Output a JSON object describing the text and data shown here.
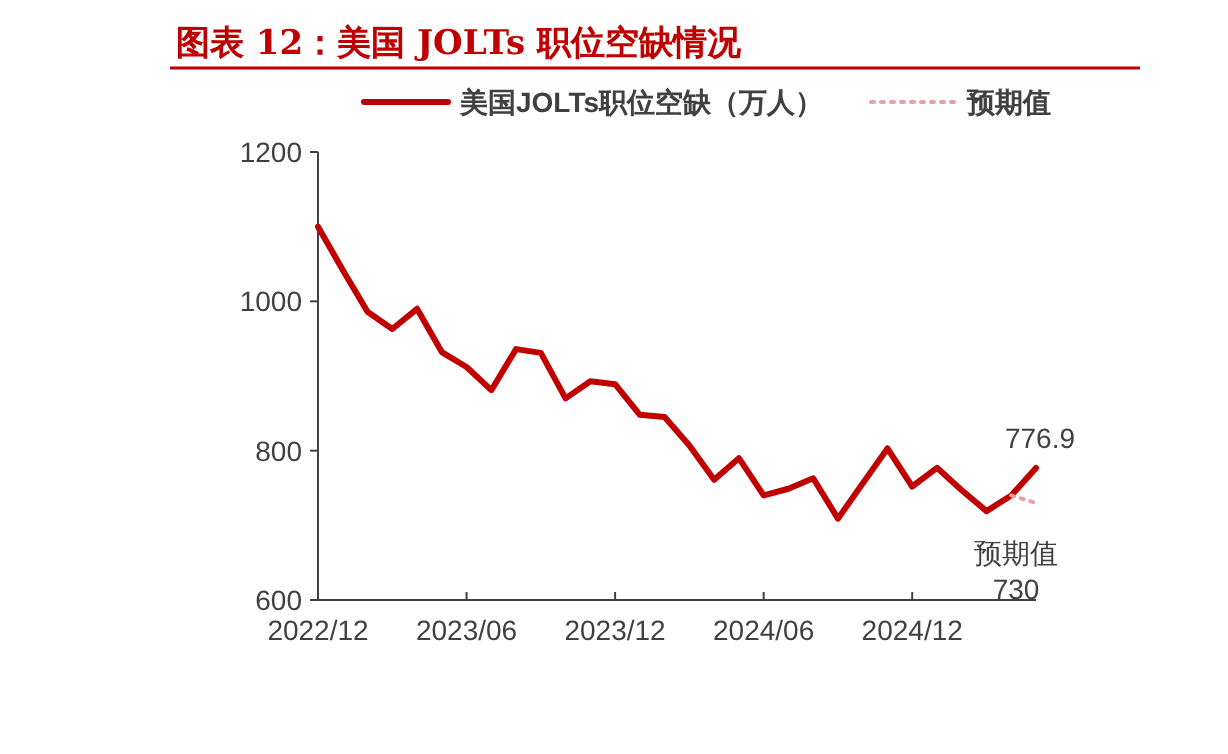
{
  "chart_data": {
    "type": "line",
    "title": "图表 12：美国 JOLTs 职位空缺情况",
    "x": [
      "2022-12",
      "2023-01",
      "2023-02",
      "2023-03",
      "2023-04",
      "2023-05",
      "2023-06",
      "2023-07",
      "2023-08",
      "2023-09",
      "2023-10",
      "2023-11",
      "2023-12",
      "2024-01",
      "2024-02",
      "2024-03",
      "2024-04",
      "2024-05",
      "2024-06",
      "2024-07",
      "2024-08",
      "2024-09",
      "2024-10",
      "2024-11",
      "2024-12",
      "2025-01",
      "2025-02",
      "2025-03",
      "2025-04",
      "2025-05"
    ],
    "series": [
      {
        "name": "美国JOLTs职位空缺（万人）",
        "color": "#c00000",
        "line_style": "solid",
        "values": [
          1100,
          1042,
          986,
          963,
          990,
          932,
          912,
          881,
          936,
          931,
          870,
          893,
          889,
          848,
          845,
          807,
          761,
          790,
          740,
          749,
          763,
          709,
          756,
          803,
          752,
          777,
          747,
          719,
          740,
          776.9
        ],
        "value_labels": [
          null,
          null,
          null,
          null,
          null,
          null,
          null,
          null,
          null,
          null,
          null,
          null,
          null,
          null,
          null,
          null,
          null,
          null,
          null,
          null,
          null,
          null,
          null,
          null,
          null,
          null,
          null,
          null,
          null,
          "776.9"
        ]
      },
      {
        "name": "预期值",
        "color": "#e8a0a8",
        "line_style": "dotted",
        "values": [
          null,
          null,
          null,
          null,
          null,
          null,
          null,
          null,
          null,
          null,
          null,
          null,
          null,
          null,
          null,
          null,
          null,
          null,
          null,
          null,
          null,
          null,
          null,
          null,
          null,
          null,
          null,
          null,
          740,
          730
        ],
        "value_labels": [
          null,
          null,
          null,
          null,
          null,
          null,
          null,
          null,
          null,
          null,
          null,
          null,
          null,
          null,
          null,
          null,
          null,
          null,
          null,
          null,
          null,
          null,
          null,
          null,
          null,
          null,
          null,
          null,
          null,
          "730"
        ]
      }
    ],
    "annotations": [
      {
        "text": "预期值",
        "x": "2025-05",
        "y": 730
      }
    ],
    "xlim": [
      "2022-12",
      "2025-05"
    ],
    "xticks": [
      {
        "value": "2022-12",
        "label": "2022/12"
      },
      {
        "value": "2023-06",
        "label": "2023/06"
      },
      {
        "value": "2023-12",
        "label": "2023/12"
      },
      {
        "value": "2024-06",
        "label": "2024/06"
      },
      {
        "value": "2024-12",
        "label": "2024/12"
      }
    ],
    "ylim": [
      600,
      1200
    ],
    "yticks": [
      600,
      800,
      1000,
      1200
    ],
    "grid": false,
    "legend": "top",
    "marker": "none"
  }
}
